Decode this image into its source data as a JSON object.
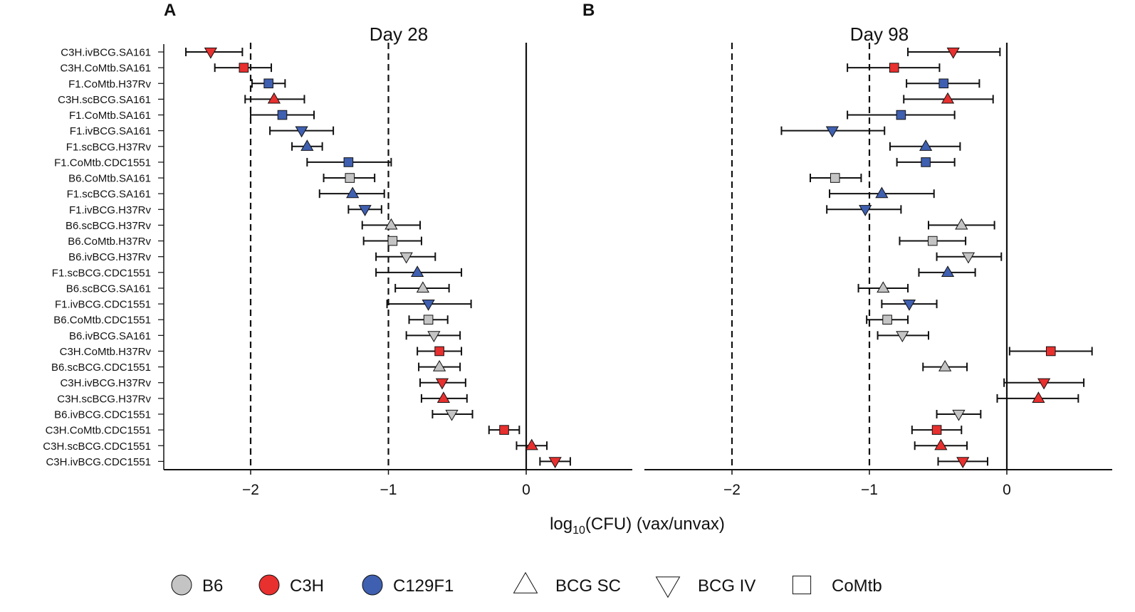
{
  "chart_data": {
    "type": "forest",
    "xlabel_prefix": "log",
    "xlabel_subscript": "10",
    "xlabel_suffix": "(CFU) (vax/unvax)",
    "xlim": [
      -2.6,
      0.8
    ],
    "xticks": [
      -2,
      -1,
      0
    ],
    "xtick_labels": [
      "−2",
      "−1",
      "0"
    ],
    "reference_lines_dashed": [
      -2,
      -1
    ],
    "reference_line_solid": 0,
    "strain_colors": {
      "B6": "#c4c4c4",
      "C3H": "#e8302f",
      "C129F1": "#3f5fb0"
    },
    "legend": {
      "strains": [
        {
          "key": "B6",
          "label": "B6"
        },
        {
          "key": "C3H",
          "label": "C3H"
        },
        {
          "key": "C129F1",
          "label": "C129F1"
        }
      ],
      "vaccines": [
        {
          "key": "SC",
          "label": "BCG SC"
        },
        {
          "key": "IV",
          "label": "BCG IV"
        },
        {
          "key": "CoMtb",
          "label": "CoMtb"
        }
      ]
    },
    "rows": [
      {
        "label": "C3H.ivBCG.SA161",
        "strain": "C3H",
        "vaccine": "IV"
      },
      {
        "label": "C3H.CoMtb.SA161",
        "strain": "C3H",
        "vaccine": "CoMtb"
      },
      {
        "label": "F1.CoMtb.H37Rv",
        "strain": "C129F1",
        "vaccine": "CoMtb"
      },
      {
        "label": "C3H.scBCG.SA161",
        "strain": "C3H",
        "vaccine": "SC"
      },
      {
        "label": "F1.CoMtb.SA161",
        "strain": "C129F1",
        "vaccine": "CoMtb"
      },
      {
        "label": "F1.ivBCG.SA161",
        "strain": "C129F1",
        "vaccine": "IV"
      },
      {
        "label": "F1.scBCG.H37Rv",
        "strain": "C129F1",
        "vaccine": "SC"
      },
      {
        "label": "F1.CoMtb.CDC1551",
        "strain": "C129F1",
        "vaccine": "CoMtb"
      },
      {
        "label": "B6.CoMtb.SA161",
        "strain": "B6",
        "vaccine": "CoMtb"
      },
      {
        "label": "F1.scBCG.SA161",
        "strain": "C129F1",
        "vaccine": "SC"
      },
      {
        "label": "F1.ivBCG.H37Rv",
        "strain": "C129F1",
        "vaccine": "IV"
      },
      {
        "label": "B6.scBCG.H37Rv",
        "strain": "B6",
        "vaccine": "SC"
      },
      {
        "label": "B6.CoMtb.H37Rv",
        "strain": "B6",
        "vaccine": "CoMtb"
      },
      {
        "label": "B6.ivBCG.H37Rv",
        "strain": "B6",
        "vaccine": "IV"
      },
      {
        "label": "F1.scBCG.CDC1551",
        "strain": "C129F1",
        "vaccine": "SC"
      },
      {
        "label": "B6.scBCG.SA161",
        "strain": "B6",
        "vaccine": "SC"
      },
      {
        "label": "F1.ivBCG.CDC1551",
        "strain": "C129F1",
        "vaccine": "IV"
      },
      {
        "label": "B6.CoMtb.CDC1551",
        "strain": "B6",
        "vaccine": "CoMtb"
      },
      {
        "label": "B6.ivBCG.SA161",
        "strain": "B6",
        "vaccine": "IV"
      },
      {
        "label": "C3H.CoMtb.H37Rv",
        "strain": "C3H",
        "vaccine": "CoMtb"
      },
      {
        "label": "B6.scBCG.CDC1551",
        "strain": "B6",
        "vaccine": "SC"
      },
      {
        "label": "C3H.ivBCG.H37Rv",
        "strain": "C3H",
        "vaccine": "IV"
      },
      {
        "label": "C3H.scBCG.H37Rv",
        "strain": "C3H",
        "vaccine": "SC"
      },
      {
        "label": "B6.ivBCG.CDC1551",
        "strain": "B6",
        "vaccine": "IV"
      },
      {
        "label": "C3H.CoMtb.CDC1551",
        "strain": "C3H",
        "vaccine": "CoMtb"
      },
      {
        "label": "C3H.scBCG.CDC1551",
        "strain": "C3H",
        "vaccine": "SC"
      },
      {
        "label": "C3H.ivBCG.CDC1551",
        "strain": "C3H",
        "vaccine": "IV"
      }
    ],
    "panels": [
      {
        "letter": "A",
        "title": "Day 28",
        "estimates": [
          {
            "est": -2.29,
            "lo": -2.47,
            "hi": -2.06
          },
          {
            "est": -2.05,
            "lo": -2.26,
            "hi": -1.85
          },
          {
            "est": -1.87,
            "lo": -1.99,
            "hi": -1.75
          },
          {
            "est": -1.83,
            "lo": -2.04,
            "hi": -1.61
          },
          {
            "est": -1.77,
            "lo": -2.0,
            "hi": -1.54
          },
          {
            "est": -1.63,
            "lo": -1.86,
            "hi": -1.4
          },
          {
            "est": -1.59,
            "lo": -1.7,
            "hi": -1.48
          },
          {
            "est": -1.29,
            "lo": -1.59,
            "hi": -0.98
          },
          {
            "est": -1.28,
            "lo": -1.47,
            "hi": -1.1
          },
          {
            "est": -1.26,
            "lo": -1.5,
            "hi": -1.03
          },
          {
            "est": -1.17,
            "lo": -1.29,
            "hi": -1.05
          },
          {
            "est": -0.98,
            "lo": -1.19,
            "hi": -0.77
          },
          {
            "est": -0.97,
            "lo": -1.18,
            "hi": -0.76
          },
          {
            "est": -0.87,
            "lo": -1.09,
            "hi": -0.66
          },
          {
            "est": -0.79,
            "lo": -1.09,
            "hi": -0.47
          },
          {
            "est": -0.75,
            "lo": -0.95,
            "hi": -0.56
          },
          {
            "est": -0.71,
            "lo": -1.01,
            "hi": -0.4
          },
          {
            "est": -0.71,
            "lo": -0.85,
            "hi": -0.57
          },
          {
            "est": -0.67,
            "lo": -0.87,
            "hi": -0.48
          },
          {
            "est": -0.63,
            "lo": -0.79,
            "hi": -0.47
          },
          {
            "est": -0.63,
            "lo": -0.78,
            "hi": -0.48
          },
          {
            "est": -0.61,
            "lo": -0.77,
            "hi": -0.44
          },
          {
            "est": -0.6,
            "lo": -0.76,
            "hi": -0.43
          },
          {
            "est": -0.54,
            "lo": -0.68,
            "hi": -0.39
          },
          {
            "est": -0.16,
            "lo": -0.27,
            "hi": -0.05
          },
          {
            "est": 0.04,
            "lo": -0.07,
            "hi": 0.15
          },
          {
            "est": 0.21,
            "lo": 0.1,
            "hi": 0.32
          }
        ]
      },
      {
        "letter": "B",
        "title": "Day 98",
        "estimates": [
          {
            "est": -0.39,
            "lo": -0.72,
            "hi": -0.05
          },
          {
            "est": -0.82,
            "lo": -1.16,
            "hi": -0.49
          },
          {
            "est": -0.46,
            "lo": -0.73,
            "hi": -0.2
          },
          {
            "est": -0.43,
            "lo": -0.75,
            "hi": -0.1
          },
          {
            "est": -0.77,
            "lo": -1.16,
            "hi": -0.38
          },
          {
            "est": -1.27,
            "lo": -1.64,
            "hi": -0.89
          },
          {
            "est": -0.59,
            "lo": -0.85,
            "hi": -0.34
          },
          {
            "est": -0.59,
            "lo": -0.8,
            "hi": -0.38
          },
          {
            "est": -1.25,
            "lo": -1.43,
            "hi": -1.06
          },
          {
            "est": -0.91,
            "lo": -1.29,
            "hi": -0.53
          },
          {
            "est": -1.03,
            "lo": -1.31,
            "hi": -0.77
          },
          {
            "est": -0.33,
            "lo": -0.57,
            "hi": -0.09
          },
          {
            "est": -0.54,
            "lo": -0.78,
            "hi": -0.3
          },
          {
            "est": -0.28,
            "lo": -0.51,
            "hi": -0.04
          },
          {
            "est": -0.43,
            "lo": -0.64,
            "hi": -0.23
          },
          {
            "est": -0.9,
            "lo": -1.08,
            "hi": -0.72
          },
          {
            "est": -0.71,
            "lo": -0.91,
            "hi": -0.51
          },
          {
            "est": -0.87,
            "lo": -1.02,
            "hi": -0.72
          },
          {
            "est": -0.76,
            "lo": -0.94,
            "hi": -0.57
          },
          {
            "est": 0.32,
            "lo": 0.02,
            "hi": 0.62
          },
          {
            "est": -0.45,
            "lo": -0.61,
            "hi": -0.29
          },
          {
            "est": 0.27,
            "lo": -0.02,
            "hi": 0.56
          },
          {
            "est": 0.23,
            "lo": -0.07,
            "hi": 0.52
          },
          {
            "est": -0.35,
            "lo": -0.51,
            "hi": -0.19
          },
          {
            "est": -0.51,
            "lo": -0.69,
            "hi": -0.33
          },
          {
            "est": -0.48,
            "lo": -0.67,
            "hi": -0.29
          },
          {
            "est": -0.32,
            "lo": -0.5,
            "hi": -0.14
          }
        ]
      }
    ]
  }
}
